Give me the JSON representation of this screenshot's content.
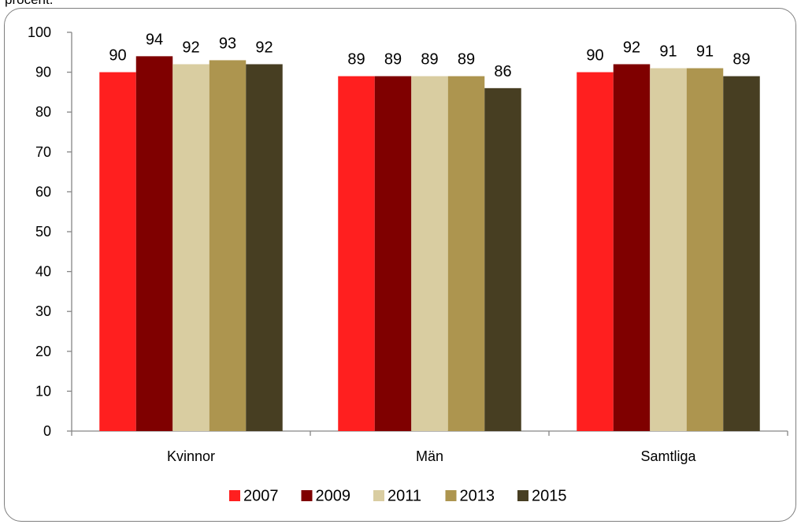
{
  "top_clip_text": "procent.",
  "chart_data": {
    "type": "bar",
    "categories": [
      "Kvinnor",
      "Män",
      "Samtliga"
    ],
    "series": [
      {
        "name": "2007",
        "color": "#ff1f1f",
        "values": [
          90,
          89,
          90
        ]
      },
      {
        "name": "2009",
        "color": "#7f0000",
        "values": [
          94,
          89,
          92
        ]
      },
      {
        "name": "2011",
        "color": "#d9cda1",
        "values": [
          92,
          89,
          91
        ]
      },
      {
        "name": "2013",
        "color": "#ad954f",
        "values": [
          93,
          89,
          91
        ]
      },
      {
        "name": "2015",
        "color": "#473e22",
        "values": [
          92,
          86,
          89
        ]
      }
    ],
    "yticks": [
      "0",
      "10",
      "20",
      "30",
      "40",
      "50",
      "60",
      "70",
      "80",
      "90",
      "100"
    ],
    "ylim": [
      0,
      100
    ],
    "grid": false,
    "legend_position": "bottom"
  }
}
